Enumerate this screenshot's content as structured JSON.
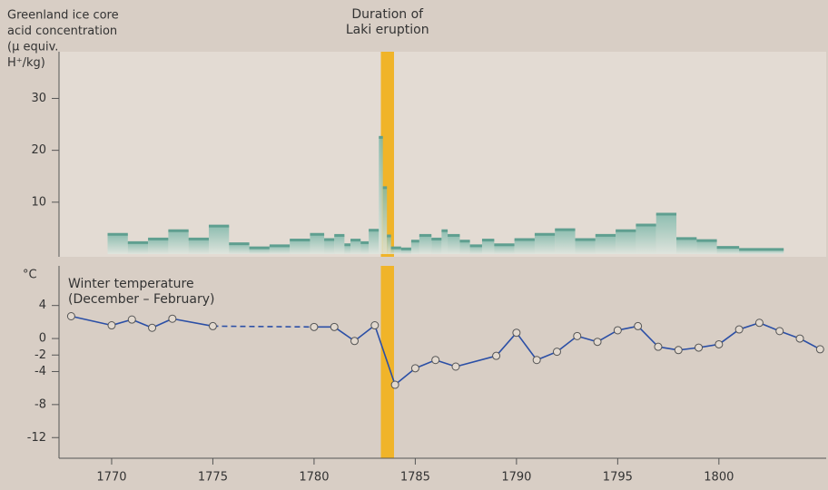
{
  "chart_data": [
    {
      "type": "histogram",
      "ylabel": [
        "Greenland ice core",
        "acid concentration",
        "(µ equiv.",
        "H⁺/kg)"
      ],
      "bins": [
        1769.8,
        1770.8,
        1771.8,
        1772.8,
        1773.8,
        1774.8,
        1775.8,
        1776.8,
        1777.8,
        1778.8,
        1779.8,
        1780.5,
        1781,
        1781.5,
        1781.8,
        1782.3,
        1782.7,
        1783.2,
        1783.4,
        1783.6,
        1783.8,
        1784.3,
        1784.8,
        1785.2,
        1785.8,
        1786.3,
        1786.6,
        1787.2,
        1787.7,
        1788.3,
        1788.9,
        1789.9,
        1790.9,
        1791.9,
        1792.9,
        1793.9,
        1794.9,
        1795.9,
        1796.9,
        1797.9,
        1798.9,
        1799.9,
        1801.0,
        1803.2
      ],
      "values": [
        3.8,
        2.2,
        2.9,
        4.5,
        2.9,
        5.4,
        2.0,
        1.2,
        1.6,
        2.7,
        3.8,
        2.8,
        3.6,
        1.8,
        2.7,
        2.2,
        4.6,
        22.5,
        12.8,
        3.5,
        1.2,
        1.0,
        2.5,
        3.6,
        2.9,
        4.5,
        3.6,
        2.5,
        1.6,
        2.7,
        1.8,
        2.8,
        3.8,
        4.7,
        2.8,
        3.6,
        4.5,
        5.6,
        7.7,
        3.0,
        2.6,
        1.3,
        0.9
      ],
      "color": "#5f9f90",
      "xlim": [
        1767.4,
        1805.3
      ],
      "ylim": [
        0,
        39
      ],
      "yticks": [
        10,
        20,
        30
      ],
      "highlight": {
        "label": [
          "Duration of",
          "Laki eruption"
        ],
        "x": [
          1783.3,
          1783.95
        ],
        "color": "#f0b429"
      }
    },
    {
      "type": "line",
      "title": [
        "Winter temperature",
        "(December – February)"
      ],
      "ylabel": "°C",
      "x": [
        1768,
        1770,
        1771,
        1772,
        1773,
        1775,
        1780,
        1781,
        1782,
        1783,
        1784,
        1785,
        1786,
        1787,
        1789,
        1790,
        1791,
        1792,
        1793,
        1794,
        1795,
        1796,
        1797,
        1798,
        1799,
        1800,
        1801,
        1802,
        1803,
        1804,
        1805
      ],
      "values": [
        2.7,
        1.6,
        2.3,
        1.3,
        2.4,
        1.5,
        1.4,
        1.4,
        -0.3,
        1.6,
        -5.6,
        -3.6,
        -2.6,
        -3.4,
        -2.1,
        0.7,
        -2.6,
        -1.6,
        0.3,
        -0.4,
        1.0,
        1.5,
        -1.0,
        -1.4,
        -1.1,
        -0.7,
        1.1,
        1.9,
        0.9,
        0.0,
        -1.3
      ],
      "dashed_after_index": [
        5
      ],
      "color": "#2b4fa6",
      "xlim": [
        1767.4,
        1805.3
      ],
      "xticks": [
        1770,
        1775,
        1780,
        1785,
        1790,
        1795,
        1800
      ],
      "ylim": [
        -14.5,
        8.8
      ],
      "yticks": [
        4,
        0,
        -2,
        -4,
        -8,
        -12
      ]
    }
  ]
}
